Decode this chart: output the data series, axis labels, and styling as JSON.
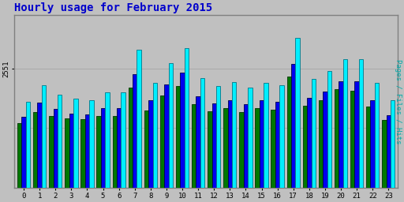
{
  "title": "Hourly usage for February 2015",
  "title_color": "#0000cc",
  "title_fontsize": 10,
  "background_color": "#c0c0c0",
  "plot_bg_color": "#c0c0c0",
  "hours": [
    0,
    1,
    2,
    3,
    4,
    5,
    6,
    7,
    8,
    9,
    10,
    11,
    12,
    13,
    14,
    15,
    16,
    17,
    18,
    19,
    20,
    21,
    22,
    23
  ],
  "pages": [
    1380,
    1620,
    1540,
    1480,
    1460,
    1530,
    1530,
    2150,
    1660,
    1970,
    2180,
    1790,
    1640,
    1700,
    1620,
    1710,
    1670,
    2380,
    1760,
    1870,
    2100,
    2080,
    1730,
    1450
  ],
  "files": [
    1520,
    1820,
    1680,
    1590,
    1570,
    1700,
    1700,
    2430,
    1870,
    2210,
    2470,
    1960,
    1800,
    1870,
    1780,
    1870,
    1840,
    2640,
    1920,
    2060,
    2280,
    2280,
    1870,
    1550
  ],
  "hits": [
    1830,
    2190,
    1990,
    1900,
    1880,
    2040,
    2040,
    2960,
    2250,
    2660,
    2990,
    2350,
    2170,
    2260,
    2150,
    2240,
    2200,
    3200,
    2330,
    2500,
    2750,
    2750,
    2250,
    1870
  ],
  "pages_color": "#007700",
  "files_color": "#0000ee",
  "hits_color": "#00eeff",
  "pages_edge": "#003300",
  "files_edge": "#00004c",
  "hits_edge": "#007788",
  "bar_width": 0.27,
  "ylim": [
    0,
    3700
  ],
  "ytick_value": 2551,
  "ytick_label": "2551",
  "grid_color": "#aaaaaa",
  "border_color": "#808080",
  "ylabel_right": "Pages / Files / Hits",
  "ylabel_right_color": "#00aaaa"
}
